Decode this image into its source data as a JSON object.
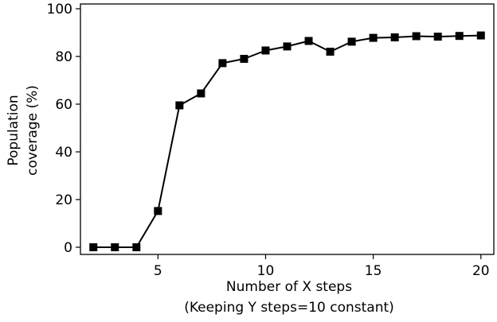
{
  "chart_data": {
    "type": "line",
    "title": "",
    "xlabel_line1": "Number of X steps",
    "xlabel_line2": "(Keeping Y steps=10 constant)",
    "ylabel_line1": "Population",
    "ylabel_line2": "coverage (%)",
    "xlim": [
      1.4,
      20.6
    ],
    "ylim": [
      -3,
      102
    ],
    "xticks": [
      5,
      10,
      15,
      20
    ],
    "yticks": [
      0,
      20,
      40,
      60,
      80,
      100
    ],
    "grid": false,
    "legend": "none",
    "series": [
      {
        "color": "#000000",
        "marker": "square",
        "x": [
          2,
          3,
          4,
          5,
          6,
          7,
          8,
          9,
          10,
          11,
          12,
          13,
          14,
          15,
          16,
          17,
          18,
          19,
          20
        ],
        "y": [
          0,
          0,
          0,
          15.2,
          59.5,
          64.5,
          77.2,
          79,
          82.5,
          84.2,
          86.5,
          82,
          86.2,
          87.8,
          88,
          88.5,
          88.3,
          88.6,
          88.8
        ]
      }
    ]
  }
}
